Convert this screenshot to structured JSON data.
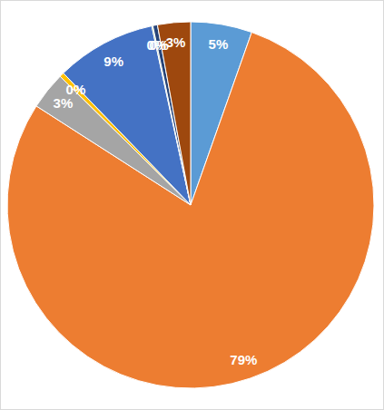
{
  "chart_data": {
    "type": "pie",
    "values": [
      5.4,
      78.6,
      3.3,
      0.4,
      8.8,
      0.1,
      0.4,
      2.9
    ],
    "value_labels": [
      "5%",
      "79%",
      "3%",
      "0%",
      "9%",
      "0%",
      "0%",
      "3%"
    ],
    "colors": [
      "#5b9bd5",
      "#ed7d31",
      "#a5a5a5",
      "#ffc000",
      "#4472c4",
      "#70ad47",
      "#264478",
      "#9e480e"
    ],
    "data_labels": true
  }
}
